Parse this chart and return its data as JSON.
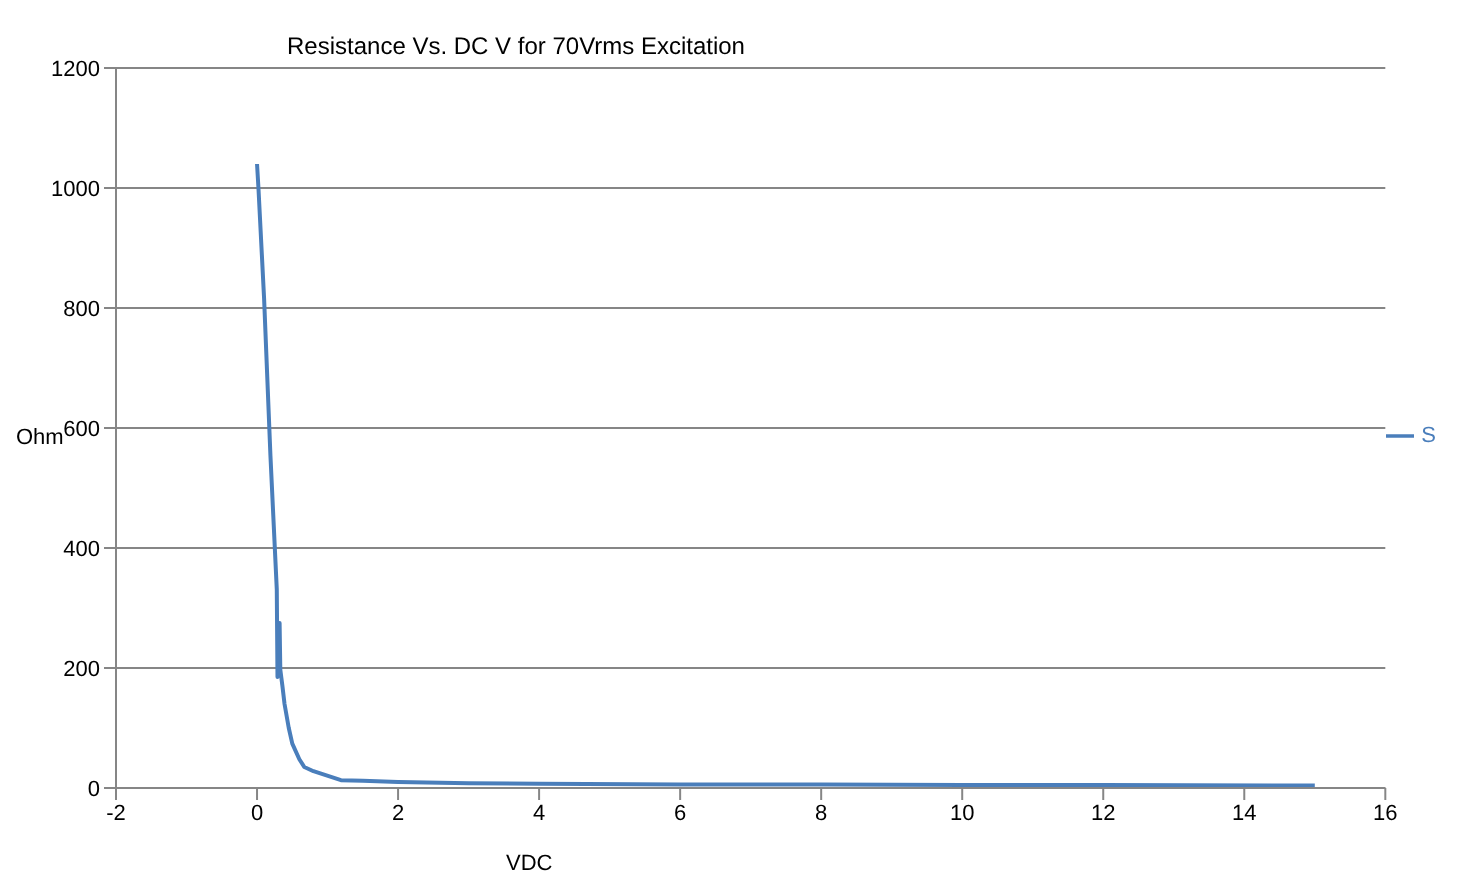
{
  "chart_data": {
    "type": "line",
    "title": "Resistance Vs. DC V for 70Vrms Excitation",
    "xlabel": "VDC",
    "ylabel": "Ohm",
    "xlim": [
      -2,
      16
    ],
    "xticks": [
      -2,
      0,
      2,
      4,
      6,
      8,
      10,
      12,
      14,
      16
    ],
    "ylim": [
      0,
      1200
    ],
    "yticks": [
      0,
      200,
      400,
      600,
      800,
      1000,
      1200
    ],
    "grid": "y",
    "legend": "right",
    "marker": "none",
    "line_style": "solid",
    "series": [
      {
        "name": "S",
        "color": "#4a7ebb",
        "x": [
          0,
          0.02,
          0.1,
          0.19,
          0.28,
          0.29,
          0.32,
          0.33,
          0.36,
          0.39,
          0.45,
          0.5,
          0.6,
          0.67,
          0.8,
          0.93,
          1.19,
          1.5,
          2,
          3,
          4,
          6,
          8,
          10,
          12,
          15
        ],
        "values": [
          1040,
          1000,
          816,
          554,
          331,
          185,
          275,
          197,
          170,
          140,
          100,
          74,
          48,
          35,
          28,
          23,
          13,
          12,
          10,
          8,
          7,
          6,
          6,
          5,
          5,
          4
        ]
      }
    ]
  }
}
